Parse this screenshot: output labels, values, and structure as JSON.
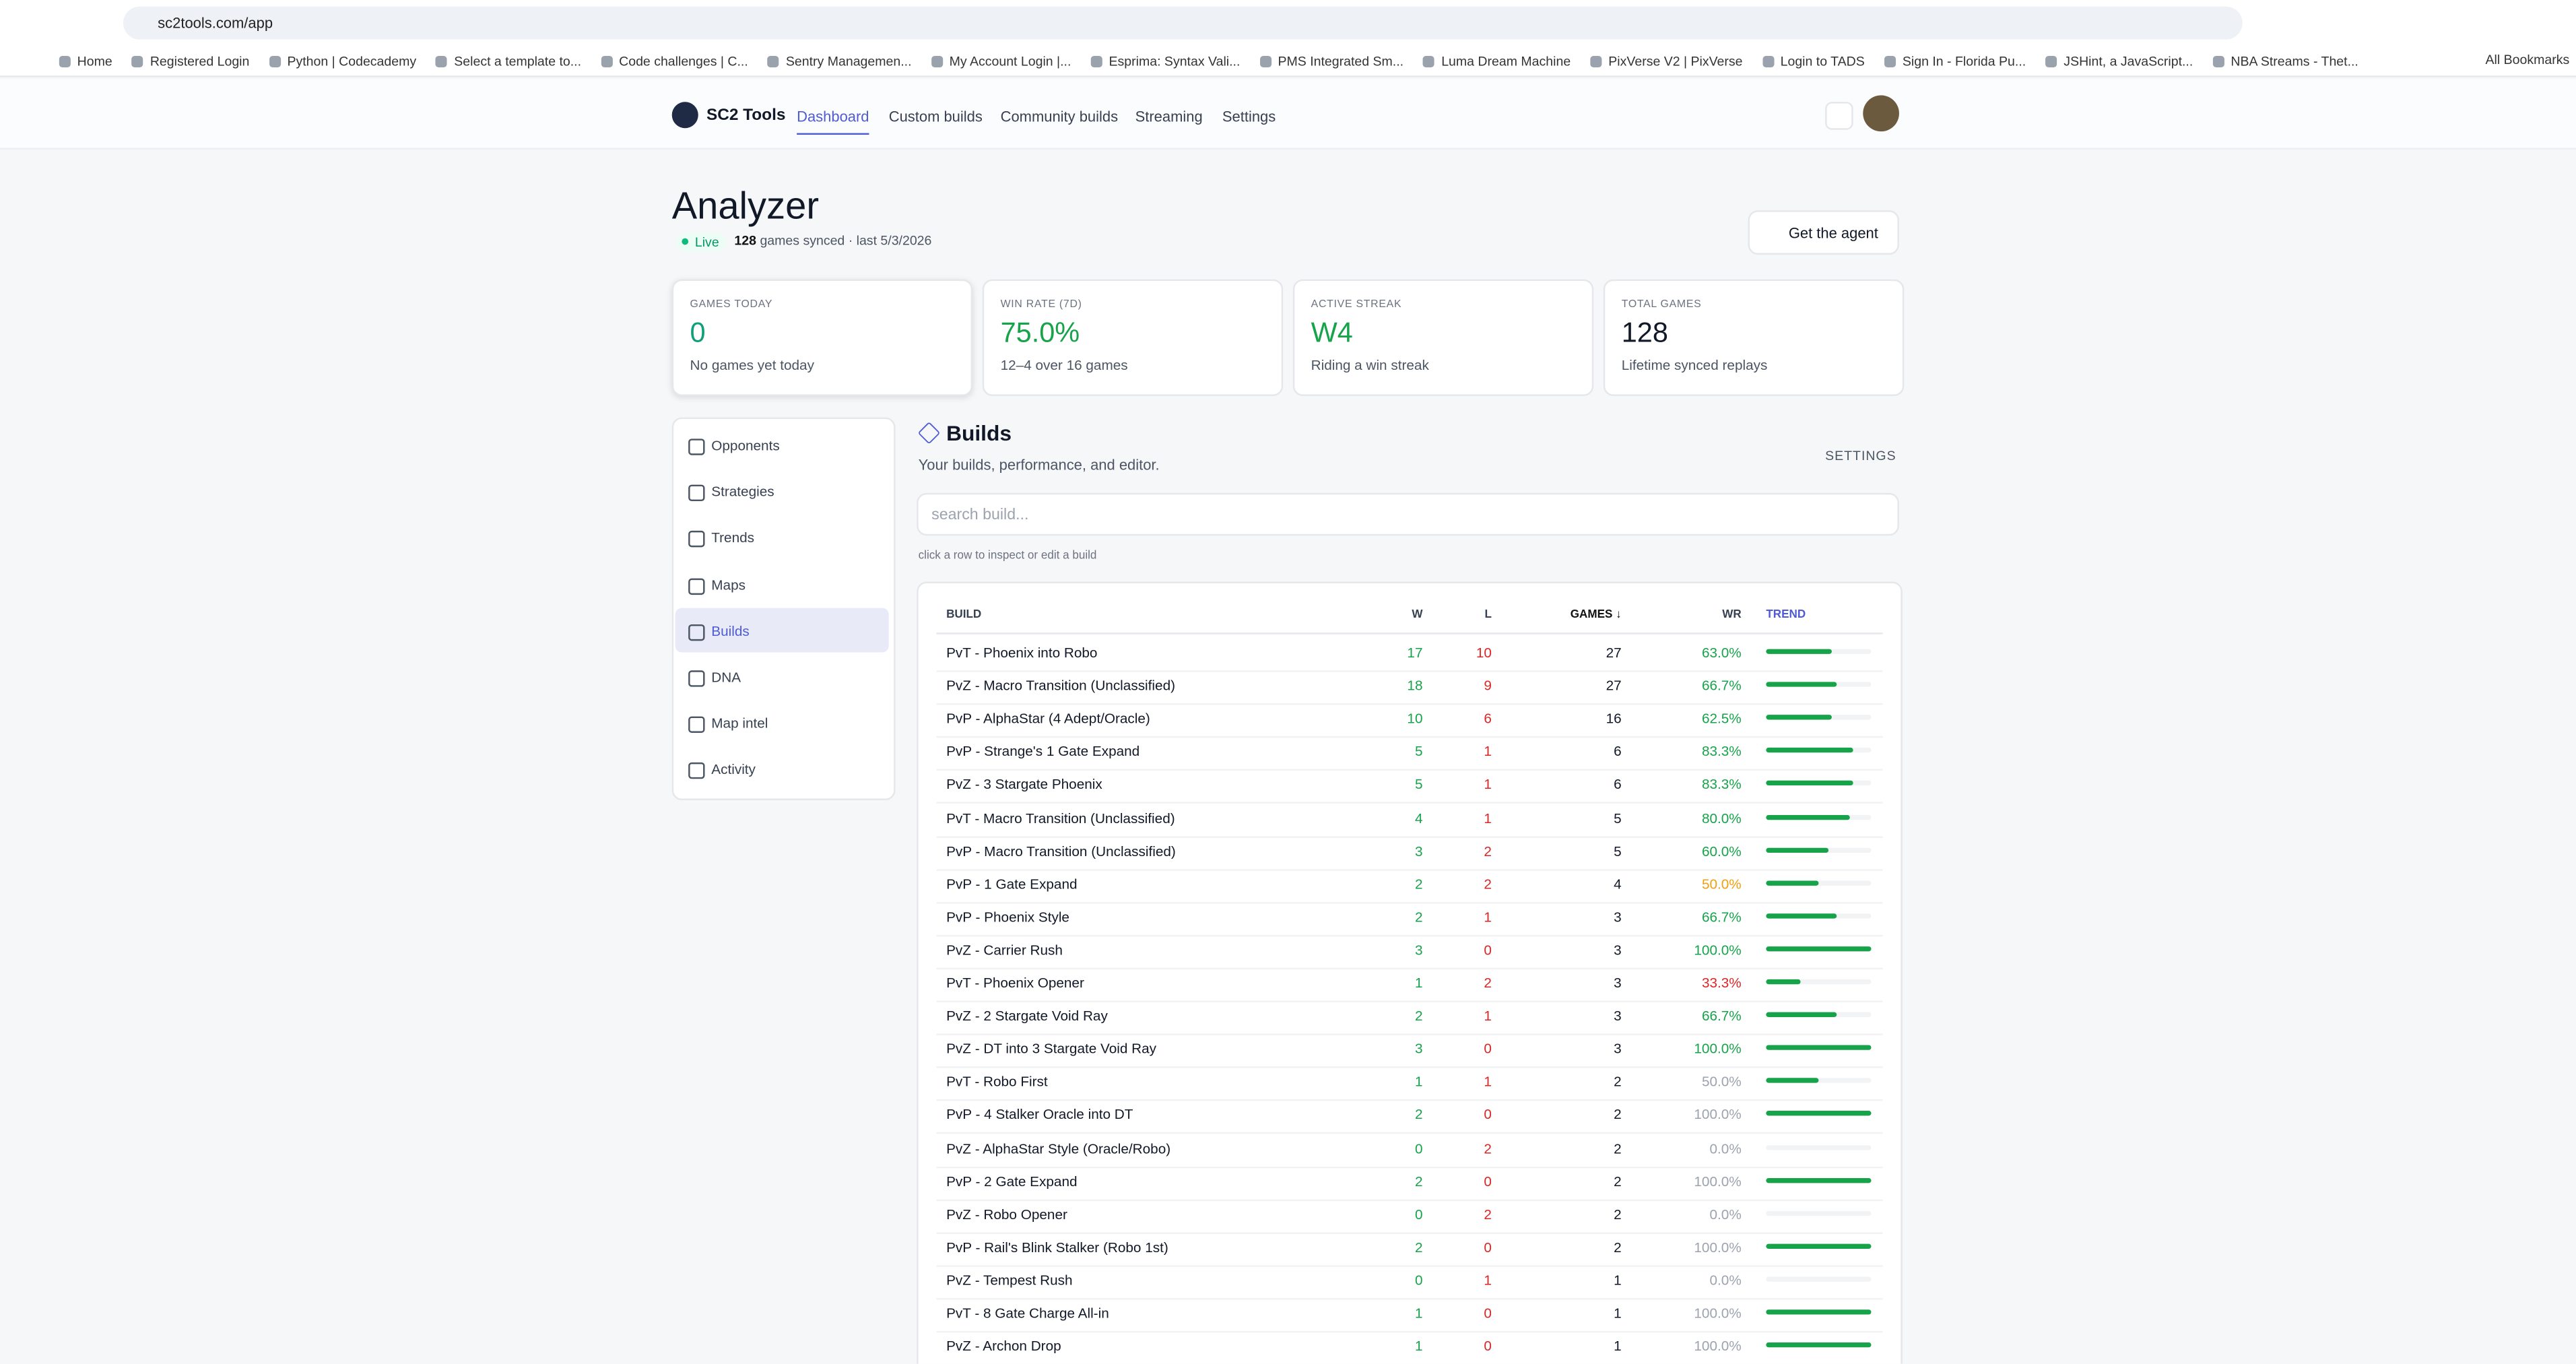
{
  "browser": {
    "url": "sc2tools.com/app",
    "bookmarks": [
      "Home",
      "Registered Login",
      "Python | Codecademy",
      "Select a template to...",
      "Code challenges | C...",
      "Sentry Managemen...",
      "My Account Login |...",
      "Esprima: Syntax Vali...",
      "PMS Integrated Sm...",
      "Luma Dream Machine",
      "PixVerse V2 | PixVerse",
      "Login to TADS",
      "Sign In - Florida Pu...",
      "JSHint, a JavaScript...",
      "NBA Streams - Thet..."
    ],
    "all_bookmarks": "All Bookmarks"
  },
  "nav": {
    "brand": "SC2 Tools",
    "tabs": [
      "Dashboard",
      "Custom builds",
      "Community builds",
      "Streaming",
      "Settings"
    ]
  },
  "header": {
    "title": "Analyzer",
    "status": "Live",
    "synced_count": "128",
    "synced_text": "games synced · last 5/3/2026",
    "button": "Get the agent"
  },
  "stats": [
    {
      "label": "GAMES TODAY",
      "value": "0",
      "sub": "No games yet today"
    },
    {
      "label": "WIN RATE (7D)",
      "value": "75.0%",
      "sub": "12–4 over 16 games"
    },
    {
      "label": "ACTIVE STREAK",
      "value": "W4",
      "sub": "Riding a win streak"
    },
    {
      "label": "TOTAL GAMES",
      "value": "128",
      "sub": "Lifetime synced replays"
    }
  ],
  "sidebar": [
    "Opponents",
    "Strategies",
    "Trends",
    "Maps",
    "Builds",
    "DNA",
    "Map intel",
    "Activity"
  ],
  "builds": {
    "title": "Builds",
    "subtitle": "Your builds, performance, and editor.",
    "settings": "SETTINGS",
    "search_placeholder": "search build...",
    "hint": "click a row to inspect or edit a build",
    "columns": [
      "BUILD",
      "W",
      "L",
      "GAMES ↓",
      "WR",
      "TREND"
    ],
    "rows": [
      [
        "PvT - Phoenix into Robo",
        17,
        10,
        27,
        "63.0%"
      ],
      [
        "PvZ - Macro Transition (Unclassified)",
        18,
        9,
        27,
        "66.7%"
      ],
      [
        "PvP - AlphaStar (4 Adept/Oracle)",
        10,
        6,
        16,
        "62.5%"
      ],
      [
        "PvP - Strange's 1 Gate Expand",
        5,
        1,
        6,
        "83.3%"
      ],
      [
        "PvZ - 3 Stargate Phoenix",
        5,
        1,
        6,
        "83.3%"
      ],
      [
        "PvT - Macro Transition (Unclassified)",
        4,
        1,
        5,
        "80.0%"
      ],
      [
        "PvP - Macro Transition (Unclassified)",
        3,
        2,
        5,
        "60.0%"
      ],
      [
        "PvP - 1 Gate Expand",
        2,
        2,
        4,
        "50.0%"
      ],
      [
        "PvP - Phoenix Style",
        2,
        1,
        3,
        "66.7%"
      ],
      [
        "PvZ - Carrier Rush",
        3,
        0,
        3,
        "100.0%"
      ],
      [
        "PvT - Phoenix Opener",
        1,
        2,
        3,
        "33.3%"
      ],
      [
        "PvZ - 2 Stargate Void Ray",
        2,
        1,
        3,
        "66.7%"
      ],
      [
        "PvZ - DT into 3 Stargate Void Ray",
        3,
        0,
        3,
        "100.0%"
      ],
      [
        "PvT - Robo First",
        1,
        1,
        2,
        "50.0%"
      ],
      [
        "PvP - 4 Stalker Oracle into DT",
        2,
        0,
        2,
        "100.0%"
      ],
      [
        "PvZ - AlphaStar Style (Oracle/Robo)",
        0,
        2,
        2,
        "0.0%"
      ],
      [
        "PvP - 2 Gate Expand",
        2,
        0,
        2,
        "100.0%"
      ],
      [
        "PvZ - Robo Opener",
        0,
        2,
        2,
        "0.0%"
      ],
      [
        "PvP - Rail's Blink Stalker (Robo 1st)",
        2,
        0,
        2,
        "100.0%"
      ],
      [
        "PvZ - Tempest Rush",
        0,
        1,
        1,
        "0.0%"
      ],
      [
        "PvT - 8 Gate Charge All-in",
        1,
        0,
        1,
        "100.0%"
      ],
      [
        "PvZ - Archon Drop",
        1,
        0,
        1,
        "100.0%"
      ]
    ]
  }
}
